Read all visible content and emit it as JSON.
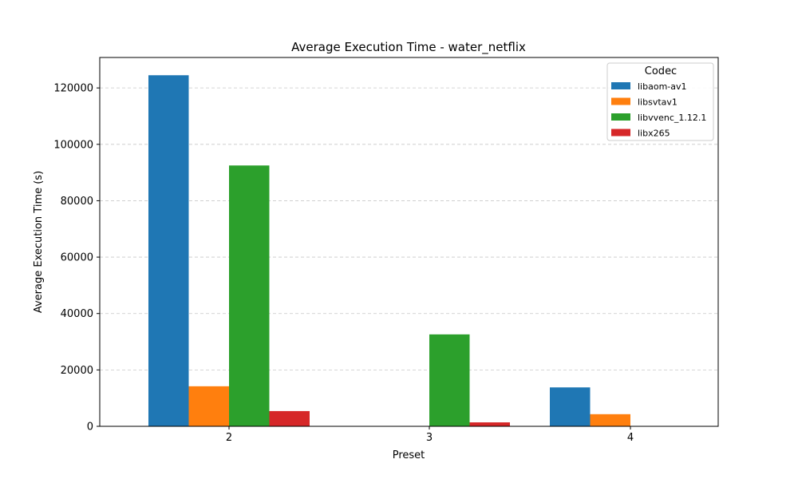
{
  "chart_data": {
    "type": "bar",
    "title": "Average Execution Time - water_netflix",
    "xlabel": "Preset",
    "ylabel": "Average Execution Time (s)",
    "categories": [
      "2",
      "3",
      "4"
    ],
    "ylim": [
      0,
      130800
    ],
    "yticks": [
      0,
      20000,
      40000,
      60000,
      80000,
      100000,
      120000
    ],
    "ytick_labels": [
      "0",
      "20000",
      "40000",
      "60000",
      "80000",
      "100000",
      "120000"
    ],
    "grid": "y-dashed",
    "legend": {
      "title": "Codec",
      "placement": "top-right"
    },
    "series": [
      {
        "name": "libaom-av1",
        "color": "#1f77b4",
        "values": [
          124500,
          0,
          13800
        ]
      },
      {
        "name": "libsvtav1",
        "color": "#ff7f0e",
        "values": [
          14200,
          0,
          4300
        ]
      },
      {
        "name": "libvvenc_1.12.1",
        "color": "#2ca02c",
        "values": [
          92500,
          32600,
          0
        ]
      },
      {
        "name": "libx265",
        "color": "#d62728",
        "values": [
          5400,
          1400,
          0
        ]
      }
    ]
  }
}
